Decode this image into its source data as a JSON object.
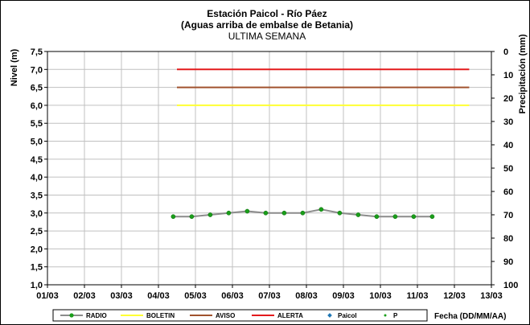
{
  "chart_data": {
    "type": "line",
    "title_line1": "Estación Paicol  - Río Páez",
    "title_line2": "(Aguas arriba de embalse de Betania)",
    "subtitle": "ULTIMA SEMANA",
    "ylabel_left": "Nivel (m)",
    "ylabel_right": "Precipitación (mm)",
    "xlabel": "Fecha  (DD/MM/AA)",
    "x_ticks": [
      "01/03",
      "02/03",
      "03/03",
      "04/03",
      "05/03",
      "06/03",
      "07/03",
      "08/03",
      "09/03",
      "10/03",
      "11/03",
      "12/03",
      "13/03"
    ],
    "x_range": [
      0,
      12
    ],
    "y_left_ticks": [
      "1,0",
      "1,5",
      "2,0",
      "2,5",
      "3,0",
      "3,5",
      "4,0",
      "4,5",
      "5,0",
      "5,5",
      "6,0",
      "6,5",
      "7,0",
      "7,5"
    ],
    "y_left_range": [
      1.0,
      7.5
    ],
    "y_right_ticks": [
      "0",
      "10",
      "20",
      "30",
      "40",
      "50",
      "60",
      "70",
      "80",
      "90",
      "100"
    ],
    "y_right_range": [
      0,
      100
    ],
    "y_right_inverted": true,
    "grid": true,
    "legend_position": "bottom",
    "series": [
      {
        "name": "RADIO",
        "color": "#8c8c8c",
        "marker_color": "#1a9e1a",
        "x": [
          3.4,
          3.9,
          4.4,
          4.9,
          5.4,
          5.9,
          6.4,
          6.9,
          7.4,
          7.9,
          8.4,
          8.9,
          9.4,
          9.9,
          10.4
        ],
        "y": [
          2.9,
          2.9,
          2.95,
          3.0,
          3.05,
          3.0,
          3.0,
          3.0,
          3.1,
          3.0,
          2.95,
          2.9,
          2.9,
          2.9,
          2.9
        ]
      },
      {
        "name": "BOLETIN",
        "color": "#ffff33",
        "x": [
          3.5,
          11.4
        ],
        "y": [
          6.0,
          6.0
        ]
      },
      {
        "name": "AVISO",
        "color": "#a0522d",
        "x": [
          3.5,
          11.4
        ],
        "y": [
          6.5,
          6.5
        ]
      },
      {
        "name": "ALERTA",
        "color": "#e31a1c",
        "x": [
          3.5,
          11.4
        ],
        "y": [
          7.0,
          7.0
        ]
      },
      {
        "name": "Paicol",
        "color": "#1f77b4",
        "x": [],
        "y": []
      },
      {
        "name": "P",
        "color": "#1a9e1a",
        "x": [],
        "y": []
      }
    ]
  }
}
